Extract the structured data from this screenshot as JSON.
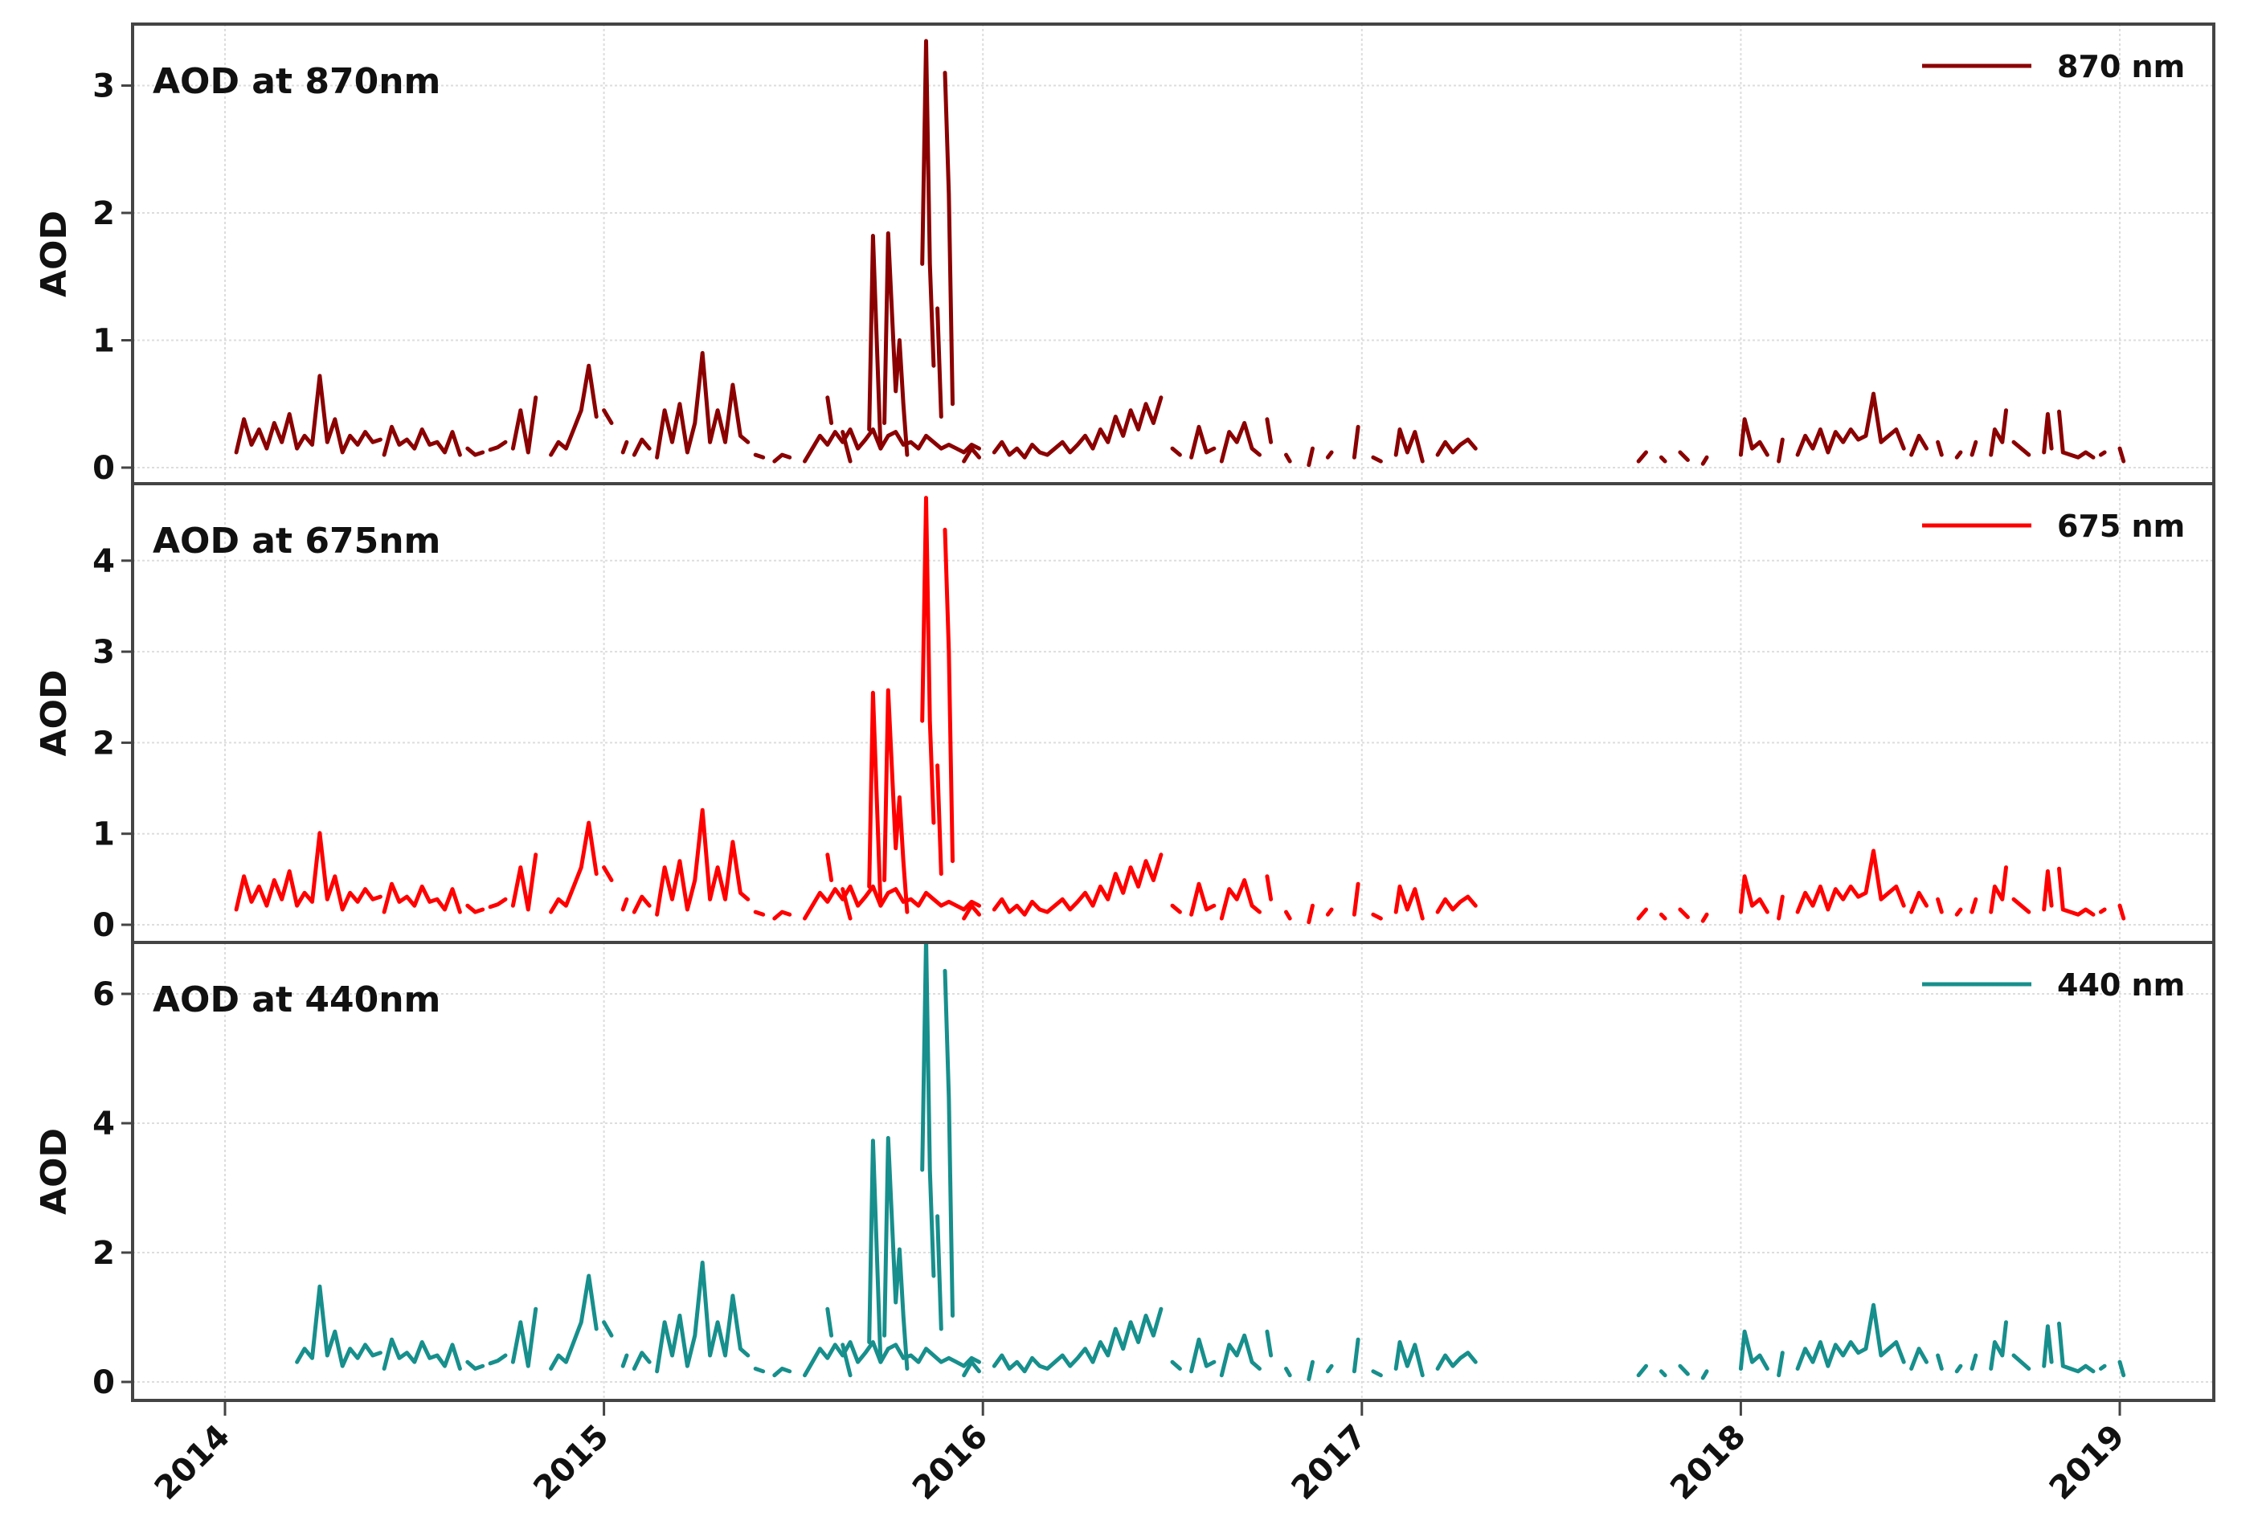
{
  "chart_data": {
    "type": "line",
    "title": "",
    "xlabel": "",
    "x_ticks": [
      "2014",
      "2015",
      "2016",
      "2017",
      "2018",
      "2019"
    ],
    "x_range": [
      2013.75,
      2019.45
    ],
    "grid": true,
    "legend_position": "upper right",
    "panels": [
      {
        "title": "AOD at 870nm",
        "ylabel": "AOD",
        "legend": "870 nm",
        "color": "#8b0000",
        "ylim": [
          -0.13,
          3.5
        ],
        "y_ticks": [
          0,
          1,
          2,
          3
        ],
        "segments": [
          [
            [
              2014.03,
              0.12
            ],
            [
              2014.05,
              0.38
            ],
            [
              2014.07,
              0.18
            ],
            [
              2014.09,
              0.3
            ],
            [
              2014.11,
              0.15
            ],
            [
              2014.13,
              0.35
            ],
            [
              2014.15,
              0.2
            ],
            [
              2014.17,
              0.42
            ],
            [
              2014.19,
              0.15
            ],
            [
              2014.21,
              0.25
            ],
            [
              2014.23,
              0.18
            ],
            [
              2014.25,
              0.72
            ],
            [
              2014.27,
              0.2
            ],
            [
              2014.29,
              0.38
            ],
            [
              2014.31,
              0.12
            ],
            [
              2014.33,
              0.25
            ],
            [
              2014.35,
              0.18
            ],
            [
              2014.37,
              0.28
            ],
            [
              2014.39,
              0.2
            ],
            [
              2014.41,
              0.22
            ]
          ],
          [
            [
              2014.42,
              0.1
            ],
            [
              2014.44,
              0.32
            ],
            [
              2014.46,
              0.18
            ],
            [
              2014.48,
              0.22
            ],
            [
              2014.5,
              0.15
            ],
            [
              2014.52,
              0.3
            ],
            [
              2014.54,
              0.18
            ],
            [
              2014.56,
              0.2
            ],
            [
              2014.58,
              0.12
            ],
            [
              2014.6,
              0.28
            ],
            [
              2014.62,
              0.1
            ]
          ],
          [
            [
              2014.64,
              0.15
            ],
            [
              2014.66,
              0.1
            ],
            [
              2014.68,
              0.12
            ]
          ],
          [
            [
              2014.7,
              0.14
            ],
            [
              2014.72,
              0.16
            ],
            [
              2014.74,
              0.2
            ]
          ],
          [
            [
              2014.76,
              0.15
            ],
            [
              2014.78,
              0.45
            ],
            [
              2014.8,
              0.12
            ],
            [
              2014.82,
              0.55
            ]
          ],
          [
            [
              2014.86,
              0.1
            ],
            [
              2014.88,
              0.2
            ],
            [
              2014.9,
              0.15
            ],
            [
              2014.92,
              0.3
            ],
            [
              2014.94,
              0.45
            ],
            [
              2014.96,
              0.8
            ],
            [
              2014.98,
              0.4
            ]
          ],
          [
            [
              2015.0,
              0.45
            ],
            [
              2015.02,
              0.35
            ]
          ],
          [
            [
              2015.05,
              0.12
            ],
            [
              2015.06,
              0.2
            ]
          ],
          [
            [
              2015.08,
              0.1
            ],
            [
              2015.1,
              0.22
            ],
            [
              2015.12,
              0.15
            ]
          ],
          [
            [
              2015.14,
              0.08
            ],
            [
              2015.16,
              0.45
            ],
            [
              2015.18,
              0.2
            ],
            [
              2015.2,
              0.5
            ],
            [
              2015.22,
              0.12
            ],
            [
              2015.24,
              0.35
            ],
            [
              2015.26,
              0.9
            ],
            [
              2015.28,
              0.2
            ],
            [
              2015.3,
              0.45
            ],
            [
              2015.32,
              0.2
            ],
            [
              2015.34,
              0.65
            ],
            [
              2015.36,
              0.25
            ],
            [
              2015.38,
              0.2
            ]
          ],
          [
            [
              2015.4,
              0.1
            ],
            [
              2015.42,
              0.08
            ]
          ],
          [
            [
              2015.45,
              0.05
            ],
            [
              2015.47,
              0.1
            ],
            [
              2015.49,
              0.08
            ]
          ],
          [
            [
              2015.53,
              0.05
            ],
            [
              2015.55,
              0.15
            ],
            [
              2015.57,
              0.25
            ],
            [
              2015.59,
              0.18
            ],
            [
              2015.61,
              0.28
            ],
            [
              2015.63,
              0.2
            ],
            [
              2015.65,
              0.3
            ],
            [
              2015.67,
              0.15
            ],
            [
              2015.69,
              0.22
            ],
            [
              2015.71,
              0.3
            ],
            [
              2015.73,
              0.15
            ],
            [
              2015.75,
              0.25
            ],
            [
              2015.77,
              0.28
            ],
            [
              2015.79,
              0.18
            ],
            [
              2015.81,
              0.2
            ],
            [
              2015.83,
              0.15
            ],
            [
              2015.85,
              0.25
            ],
            [
              2015.87,
              0.2
            ],
            [
              2015.89,
              0.15
            ],
            [
              2015.91,
              0.18
            ],
            [
              2015.93,
              0.15
            ],
            [
              2015.95,
              0.12
            ],
            [
              2015.97,
              0.18
            ],
            [
              2015.99,
              0.15
            ]
          ],
          [
            [
              2015.59,
              0.55
            ],
            [
              2015.6,
              0.35
            ]
          ],
          [
            [
              2015.63,
              0.28
            ],
            [
              2015.65,
              0.05
            ]
          ],
          [
            [
              2015.7,
              0.3
            ],
            [
              2015.71,
              1.82
            ],
            [
              2015.73,
              0.15
            ]
          ],
          [
            [
              2015.74,
              0.35
            ],
            [
              2015.75,
              1.84
            ],
            [
              2015.77,
              0.6
            ],
            [
              2015.78,
              1.0
            ],
            [
              2015.79,
              0.5
            ],
            [
              2015.8,
              0.1
            ]
          ],
          [
            [
              2015.84,
              1.6
            ],
            [
              2015.85,
              3.35
            ],
            [
              2015.86,
              1.6
            ],
            [
              2015.87,
              0.8
            ]
          ],
          [
            [
              2015.88,
              1.25
            ],
            [
              2015.89,
              0.4
            ]
          ],
          [
            [
              2015.9,
              3.1
            ],
            [
              2015.91,
              2.15
            ],
            [
              2015.92,
              0.5
            ]
          ],
          [
            [
              2015.95,
              0.05
            ],
            [
              2015.97,
              0.15
            ],
            [
              2015.99,
              0.08
            ]
          ],
          [
            [
              2016.03,
              0.12
            ],
            [
              2016.05,
              0.2
            ],
            [
              2016.07,
              0.1
            ],
            [
              2016.09,
              0.15
            ],
            [
              2016.11,
              0.08
            ],
            [
              2016.13,
              0.18
            ],
            [
              2016.15,
              0.12
            ],
            [
              2016.17,
              0.1
            ],
            [
              2016.19,
              0.15
            ],
            [
              2016.21,
              0.2
            ],
            [
              2016.23,
              0.12
            ],
            [
              2016.25,
              0.18
            ],
            [
              2016.27,
              0.25
            ],
            [
              2016.29,
              0.15
            ],
            [
              2016.31,
              0.3
            ],
            [
              2016.33,
              0.2
            ],
            [
              2016.35,
              0.4
            ],
            [
              2016.37,
              0.25
            ],
            [
              2016.39,
              0.45
            ],
            [
              2016.41,
              0.3
            ],
            [
              2016.43,
              0.5
            ],
            [
              2016.45,
              0.35
            ],
            [
              2016.47,
              0.55
            ]
          ],
          [
            [
              2016.5,
              0.15
            ],
            [
              2016.52,
              0.1
            ]
          ],
          [
            [
              2016.55,
              0.08
            ],
            [
              2016.57,
              0.32
            ],
            [
              2016.59,
              0.12
            ],
            [
              2016.61,
              0.15
            ]
          ],
          [
            [
              2016.63,
              0.05
            ],
            [
              2016.65,
              0.28
            ],
            [
              2016.67,
              0.2
            ],
            [
              2016.69,
              0.35
            ],
            [
              2016.71,
              0.15
            ],
            [
              2016.73,
              0.1
            ]
          ],
          [
            [
              2016.75,
              0.38
            ],
            [
              2016.76,
              0.2
            ]
          ],
          [
            [
              2016.8,
              0.1
            ],
            [
              2016.81,
              0.05
            ]
          ],
          [
            [
              2016.86,
              0.02
            ],
            [
              2016.87,
              0.15
            ]
          ],
          [
            [
              2016.91,
              0.08
            ],
            [
              2016.92,
              0.12
            ]
          ],
          [
            [
              2016.98,
              0.08
            ],
            [
              2016.99,
              0.32
            ]
          ],
          [
            [
              2017.03,
              0.08
            ],
            [
              2017.05,
              0.05
            ]
          ],
          [
            [
              2017.09,
              0.1
            ],
            [
              2017.1,
              0.3
            ],
            [
              2017.12,
              0.12
            ],
            [
              2017.14,
              0.28
            ],
            [
              2017.16,
              0.05
            ]
          ],
          [
            [
              2017.2,
              0.1
            ],
            [
              2017.22,
              0.2
            ],
            [
              2017.24,
              0.12
            ],
            [
              2017.26,
              0.18
            ],
            [
              2017.28,
              0.22
            ],
            [
              2017.3,
              0.15
            ]
          ],
          [
            [
              2017.73,
              0.05
            ],
            [
              2017.75,
              0.12
            ]
          ],
          [
            [
              2017.79,
              0.08
            ],
            [
              2017.8,
              0.05
            ]
          ],
          [
            [
              2017.84,
              0.12
            ],
            [
              2017.86,
              0.06
            ]
          ],
          [
            [
              2017.9,
              0.03
            ],
            [
              2017.91,
              0.08
            ]
          ],
          [
            [
              2018.0,
              0.1
            ],
            [
              2018.01,
              0.38
            ],
            [
              2018.03,
              0.15
            ],
            [
              2018.05,
              0.2
            ],
            [
              2018.07,
              0.1
            ]
          ],
          [
            [
              2018.1,
              0.05
            ],
            [
              2018.11,
              0.22
            ]
          ],
          [
            [
              2018.15,
              0.1
            ],
            [
              2018.17,
              0.25
            ],
            [
              2018.19,
              0.15
            ],
            [
              2018.21,
              0.3
            ],
            [
              2018.23,
              0.12
            ],
            [
              2018.25,
              0.28
            ],
            [
              2018.27,
              0.2
            ],
            [
              2018.29,
              0.3
            ],
            [
              2018.31,
              0.22
            ],
            [
              2018.33,
              0.25
            ],
            [
              2018.35,
              0.58
            ],
            [
              2018.37,
              0.2
            ],
            [
              2018.39,
              0.25
            ],
            [
              2018.41,
              0.3
            ],
            [
              2018.43,
              0.15
            ]
          ],
          [
            [
              2018.45,
              0.1
            ],
            [
              2018.47,
              0.25
            ],
            [
              2018.49,
              0.15
            ]
          ],
          [
            [
              2018.52,
              0.2
            ],
            [
              2018.53,
              0.1
            ]
          ],
          [
            [
              2018.57,
              0.08
            ],
            [
              2018.58,
              0.12
            ]
          ],
          [
            [
              2018.61,
              0.1
            ],
            [
              2018.62,
              0.2
            ]
          ],
          [
            [
              2018.66,
              0.1
            ],
            [
              2018.67,
              0.3
            ],
            [
              2018.69,
              0.2
            ],
            [
              2018.7,
              0.45
            ]
          ],
          [
            [
              2018.72,
              0.2
            ],
            [
              2018.74,
              0.15
            ],
            [
              2018.76,
              0.1
            ]
          ],
          [
            [
              2018.8,
              0.12
            ],
            [
              2018.81,
              0.42
            ],
            [
              2018.82,
              0.15
            ]
          ],
          [
            [
              2018.84,
              0.44
            ],
            [
              2018.85,
              0.12
            ],
            [
              2018.87,
              0.1
            ],
            [
              2018.89,
              0.08
            ],
            [
              2018.91,
              0.12
            ],
            [
              2018.93,
              0.08
            ]
          ],
          [
            [
              2018.95,
              0.1
            ],
            [
              2018.96,
              0.12
            ]
          ],
          [
            [
              2019.0,
              0.15
            ],
            [
              2019.01,
              0.05
            ]
          ]
        ]
      },
      {
        "title": "AOD at 675nm",
        "ylabel": "AOD",
        "legend": "675 nm",
        "color": "#ff0000",
        "ylim": [
          -0.19,
          4.85
        ],
        "y_ticks": [
          0,
          1,
          2,
          3,
          4
        ],
        "scale_from": 0,
        "scale_factor": 1.4
      },
      {
        "title": "AOD at 440nm",
        "ylabel": "AOD",
        "legend": "440 nm",
        "color": "#178f8c",
        "ylim": [
          -0.29,
          6.8
        ],
        "y_ticks": [
          0,
          2,
          4,
          6
        ],
        "scale_from": 0,
        "scale_factor": 2.05
      }
    ]
  }
}
